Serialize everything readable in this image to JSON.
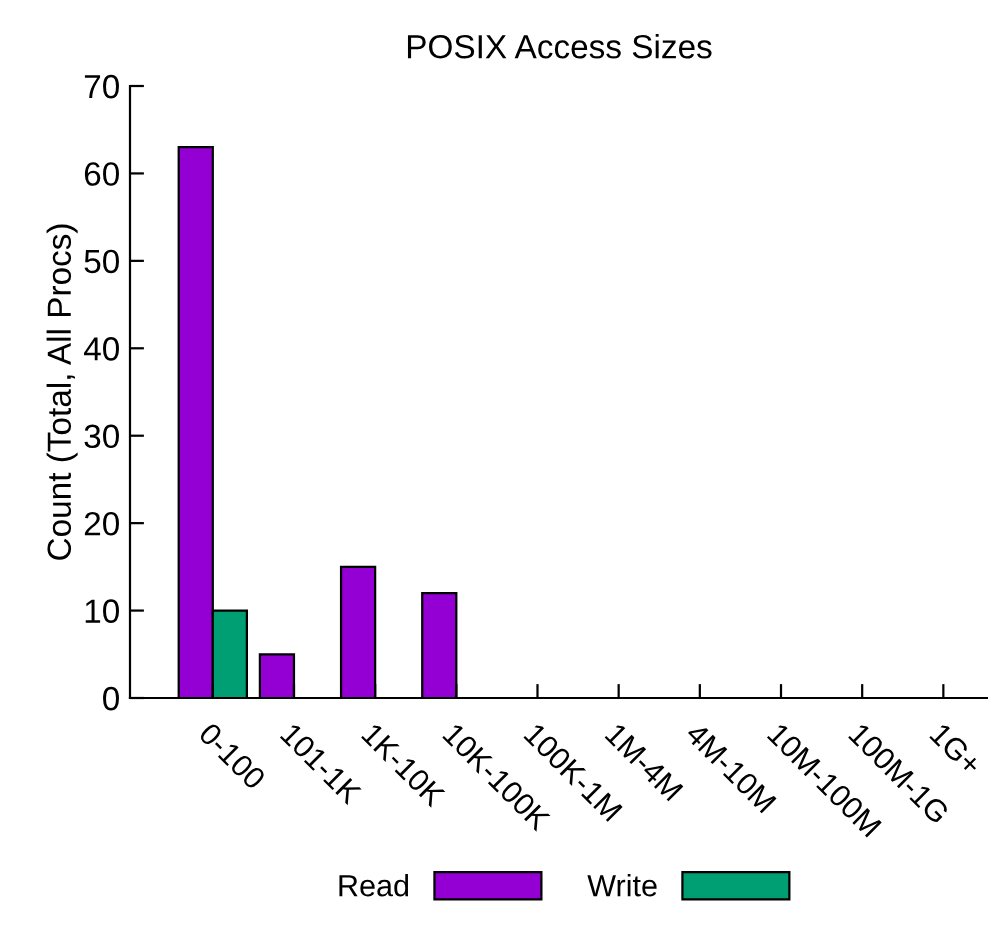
{
  "chart_data": {
    "type": "bar",
    "title": "POSIX Access Sizes",
    "ylabel": "Count (Total, All Procs)",
    "categories": [
      "0-100",
      "101-1K",
      "1K-10K",
      "10K-100K",
      "100K-1M",
      "1M-4M",
      "4M-10M",
      "10M-100M",
      "100M-1G",
      "1G+"
    ],
    "series": [
      {
        "name": "Read",
        "color": "#9400d3",
        "values": [
          63,
          5,
          15,
          12,
          0,
          0,
          0,
          0,
          0,
          0
        ]
      },
      {
        "name": "Write",
        "color": "#009e73",
        "values": [
          10,
          0,
          0,
          0,
          0,
          0,
          0,
          0,
          0,
          0
        ]
      }
    ],
    "ylim": [
      0,
      70
    ],
    "yticks": [
      0,
      10,
      20,
      30,
      40,
      50,
      60,
      70
    ],
    "grid": false,
    "legend": "bottom"
  }
}
